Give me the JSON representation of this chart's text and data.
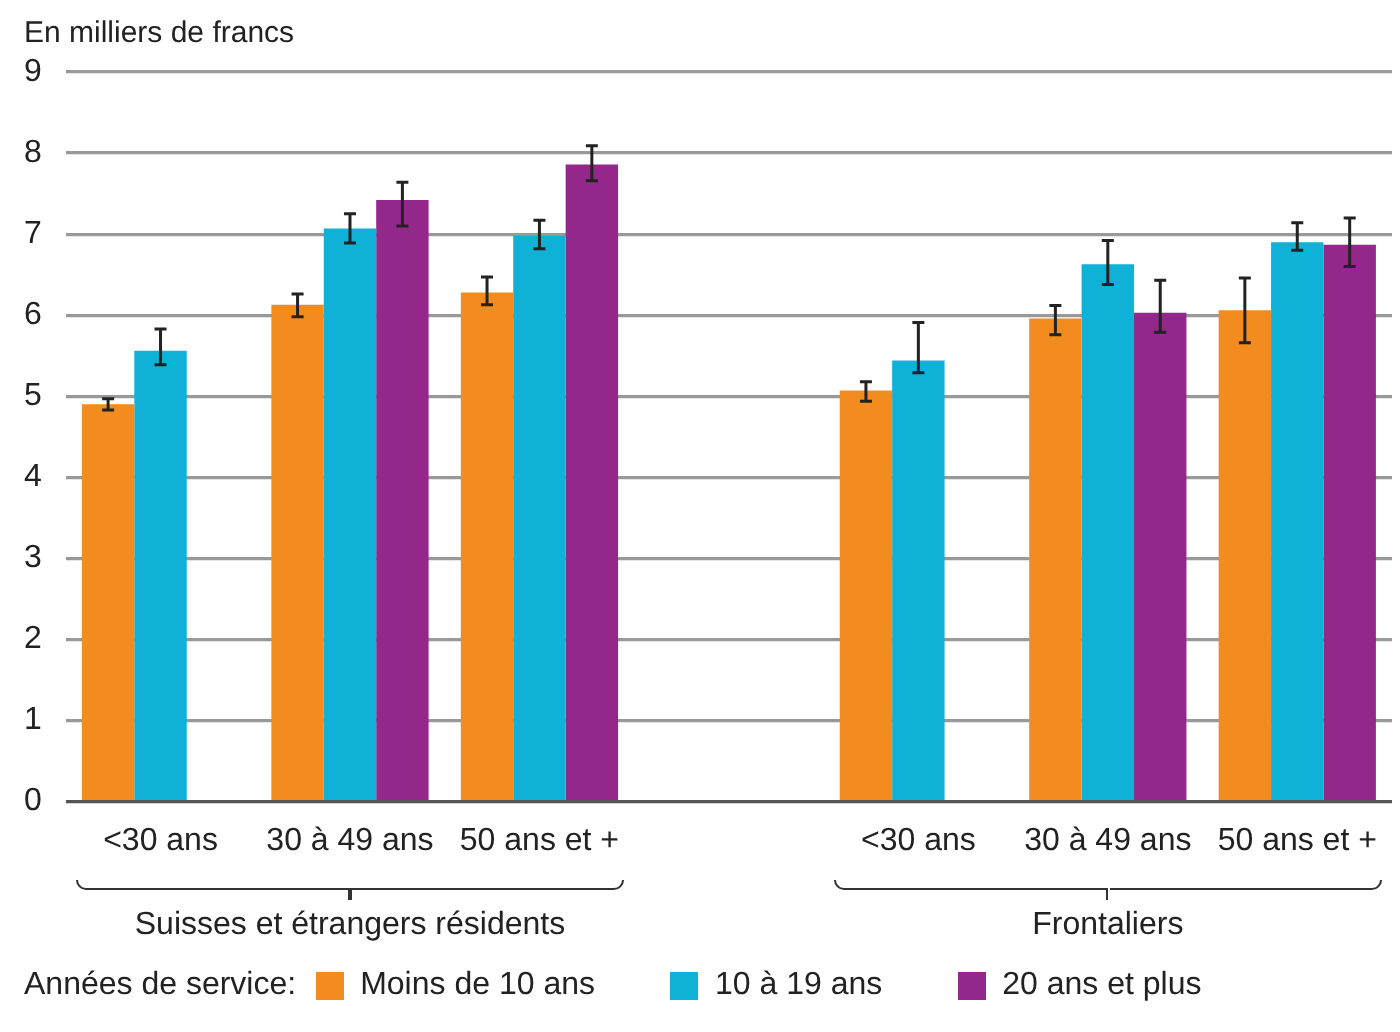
{
  "chart_data": {
    "type": "bar",
    "ylabel": "En milliers de francs",
    "categories": [
      "<30 ans",
      "30 à 49 ans",
      "50 ans et +",
      null,
      "<30 ans",
      "30 à 49 ans",
      "50 ans et +"
    ],
    "series": [
      {
        "name": "Moins de 10 ans",
        "color": "#f28c1e",
        "values": [
          4.9,
          6.13,
          6.28,
          null,
          5.07,
          5.96,
          6.06
        ],
        "errors": [
          [
            4.83,
            4.97
          ],
          [
            5.98,
            6.26
          ],
          [
            6.13,
            6.47
          ],
          null,
          [
            4.94,
            5.18
          ],
          [
            5.76,
            6.12
          ],
          [
            5.66,
            6.46
          ]
        ]
      },
      {
        "name": "10 à 19 ans",
        "color": "#0fb1d6",
        "values": [
          5.56,
          7.07,
          6.98,
          null,
          5.44,
          6.63,
          6.9
        ],
        "errors": [
          [
            5.39,
            5.83
          ],
          [
            6.89,
            7.25
          ],
          [
            6.82,
            7.17
          ],
          null,
          [
            5.29,
            5.91
          ],
          [
            6.38,
            6.92
          ],
          [
            6.8,
            7.14
          ]
        ]
      },
      {
        "name": "20 ans et plus",
        "color": "#93278a",
        "values": [
          null,
          7.42,
          7.86,
          null,
          null,
          6.03,
          6.87
        ],
        "errors": [
          null,
          [
            7.1,
            7.64
          ],
          [
            7.66,
            8.09
          ],
          null,
          null,
          [
            5.79,
            6.43
          ],
          [
            6.6,
            7.2
          ]
        ]
      }
    ],
    "ylim": [
      0,
      9
    ],
    "yticks": [
      0,
      1,
      2,
      3,
      4,
      5,
      6,
      7,
      8,
      9
    ],
    "grid": "y",
    "legend": "bottom",
    "legend_title": "Années de service:",
    "annotations": [
      "Suisses et étrangers résidents",
      "Frontaliers"
    ]
  }
}
